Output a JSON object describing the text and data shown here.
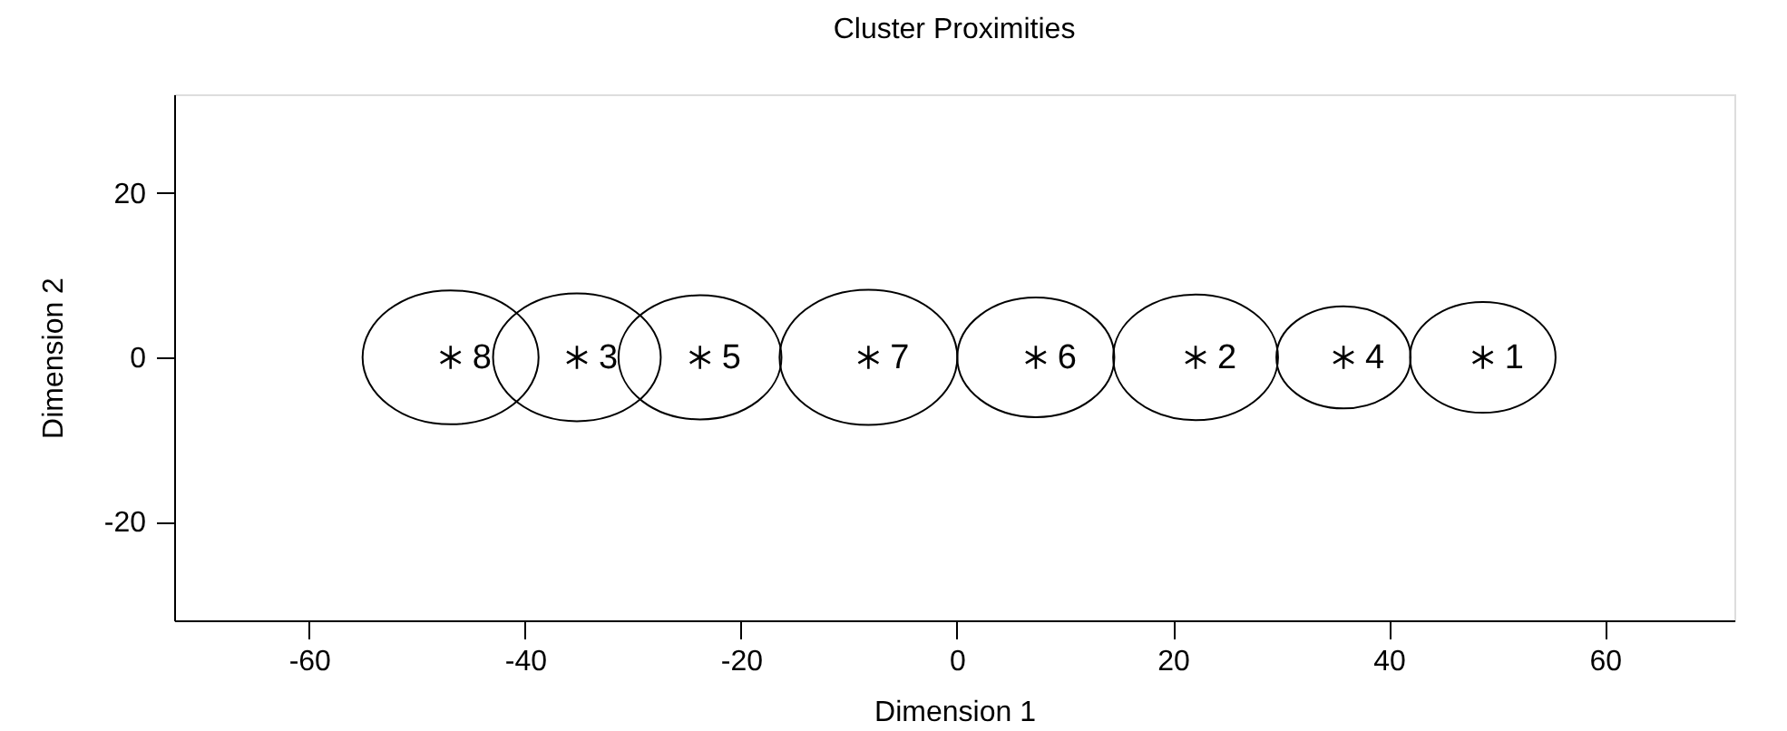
{
  "chart_data": {
    "type": "bubble",
    "title": "Cluster Proximities",
    "xlabel": "Dimension 1",
    "ylabel": "Dimension 2",
    "x": [
      -46.9,
      -35.2,
      -23.8,
      -8.2,
      7.3,
      22.1,
      35.8,
      48.7
    ],
    "values": [
      0,
      0,
      0,
      0,
      0,
      0,
      0,
      0
    ],
    "sizes": [
      0.98,
      0.89,
      0.84,
      1,
      0.78,
      0.86,
      0.57,
      0.67
    ],
    "color": "#000000",
    "marker": "cross",
    "xlim": [
      -72.5,
      72
    ],
    "ylim": [
      -32,
      32
    ],
    "xticks": [
      -60,
      -40,
      -20,
      0,
      20,
      40,
      60
    ],
    "yticks": [
      -20,
      0,
      20
    ],
    "grid": false,
    "legend": false,
    "annotations": [
      {
        "text": "8",
        "x": -46.9,
        "y": 0
      },
      {
        "text": "3",
        "x": -35.2,
        "y": 0
      },
      {
        "text": "5",
        "x": -23.8,
        "y": 0
      },
      {
        "text": "7",
        "x": -8.2,
        "y": 0
      },
      {
        "text": "6",
        "x": 7.3,
        "y": 0
      },
      {
        "text": "2",
        "x": 22.1,
        "y": 0
      },
      {
        "text": "4",
        "x": 35.8,
        "y": 0
      },
      {
        "text": "1",
        "x": 48.7,
        "y": 0
      }
    ]
  }
}
